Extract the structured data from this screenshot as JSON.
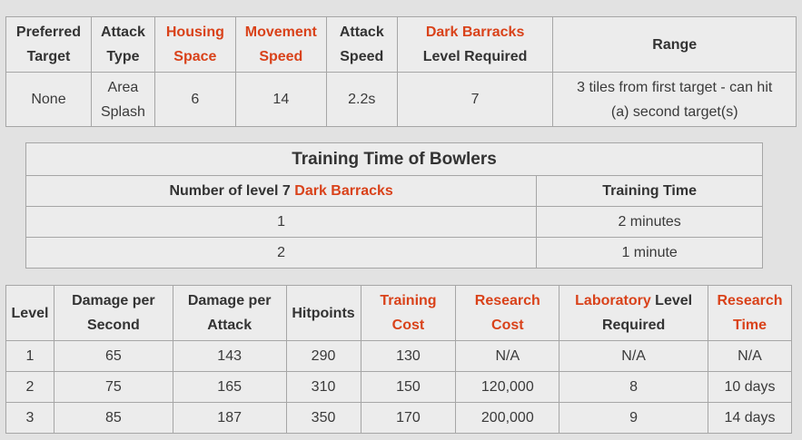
{
  "stats": {
    "headers": {
      "preferred_target": [
        "Preferred",
        "Target"
      ],
      "attack_type": [
        "Attack",
        "Type"
      ],
      "housing_space": [
        "Housing",
        "Space"
      ],
      "movement_speed": [
        "Movement",
        "Speed"
      ],
      "attack_speed": [
        "Attack",
        "Speed"
      ],
      "dark_barracks": "Dark Barracks",
      "level_required": "Level Required",
      "range": "Range"
    },
    "row": {
      "preferred_target": "None",
      "attack_type": [
        "Area",
        "Splash"
      ],
      "housing_space": "6",
      "movement_speed": "14",
      "attack_speed": "2.2s",
      "dark_barracks_level": "7",
      "range": [
        "3 tiles from first target - can hit",
        "(a) second target(s)"
      ]
    }
  },
  "training": {
    "title": "Training Time of Bowlers",
    "col1_prefix": "Number of level 7 ",
    "col1_link": "Dark Barracks",
    "col2": "Training Time",
    "rows": [
      {
        "count": "1",
        "time": "2 minutes"
      },
      {
        "count": "2",
        "time": "1 minute"
      }
    ]
  },
  "levels": {
    "headers": {
      "level": "Level",
      "dps": [
        "Damage per",
        "Second"
      ],
      "dpa": [
        "Damage per",
        "Attack"
      ],
      "hitpoints": "Hitpoints",
      "training_cost": [
        "Training",
        "Cost"
      ],
      "research_cost": [
        "Research",
        "Cost"
      ],
      "lab_link": "Laboratory",
      "lab_rest": " Level",
      "lab_line2": "Required",
      "research_time": [
        "Research",
        "Time"
      ]
    },
    "rows": [
      {
        "level": "1",
        "dps": "65",
        "dpa": "143",
        "hp": "290",
        "training_cost": "130",
        "research_cost": "N/A",
        "lab_level": "N/A",
        "research_time": "N/A"
      },
      {
        "level": "2",
        "dps": "75",
        "dpa": "165",
        "hp": "310",
        "training_cost": "150",
        "research_cost": "120,000",
        "lab_level": "8",
        "research_time": "10 days"
      },
      {
        "level": "3",
        "dps": "85",
        "dpa": "187",
        "hp": "350",
        "training_cost": "170",
        "research_cost": "200,000",
        "lab_level": "9",
        "research_time": "14 days"
      }
    ]
  },
  "colors": {
    "link": "#d9421a",
    "text": "#3a3a3a",
    "cell_bg": "#ececec",
    "border": "#a6a6a6",
    "page_bg": "#e2e2e2"
  }
}
